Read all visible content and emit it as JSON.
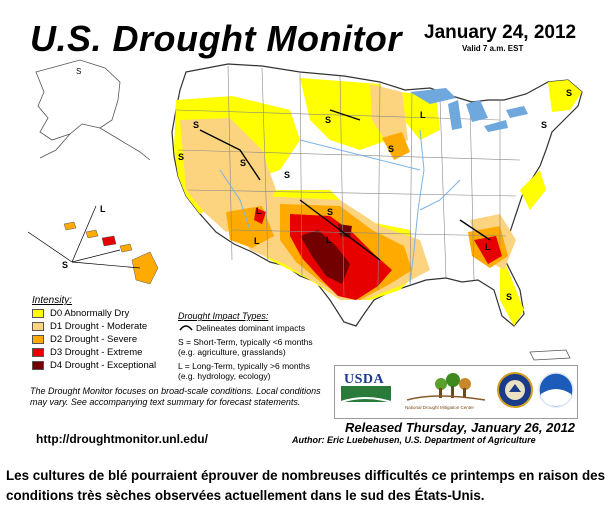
{
  "title": "U.S. Drought Monitor",
  "date": "January 24, 2012",
  "valid": "Valid 7 a.m. EST",
  "legend": {
    "title": "Intensity:",
    "items": [
      {
        "label": "D0 Abnormally Dry",
        "color": "#FFFF00"
      },
      {
        "label": "D1 Drought - Moderate",
        "color": "#FCD37F"
      },
      {
        "label": "D2 Drought - Severe",
        "color": "#FFAA00"
      },
      {
        "label": "D3 Drought - Extreme",
        "color": "#E60000"
      },
      {
        "label": "D4 Drought - Exceptional",
        "color": "#730000"
      }
    ]
  },
  "impact": {
    "title": "Drought Impact Types:",
    "delineates": "Delineates dominant impacts",
    "short_term_1": "S = Short-Term, typically <6 months",
    "short_term_2": "(e.g. agriculture, grasslands)",
    "long_term_1": "L = Long-Term, typically >6 months",
    "long_term_2": "(e.g. hydrology, ecology)"
  },
  "focus_note": "The Drought Monitor focuses on broad-scale conditions. Local conditions may vary. See accompanying text summary for forecast statements.",
  "url": "http://droughtmonitor.unl.edu/",
  "released": "Released Thursday, January 26, 2012",
  "author": "Author: Eric Luebehusen, U.S. Department of Agriculture",
  "logos": {
    "usda": "USDA",
    "ndmc": "National Drought Mitigation Center"
  },
  "map_labels": {
    "short": "S",
    "long": "L"
  },
  "caption": "Les cultures de blé pourraient éprouver de nombreuses difficultés ce printemps en raison des conditions très sèches observées actuellement dans le sud des États-Unis.",
  "colors": {
    "land": "#FFFFFF",
    "border": "#777777",
    "water": "#6FA8DC",
    "river": "#7FB2E0"
  }
}
